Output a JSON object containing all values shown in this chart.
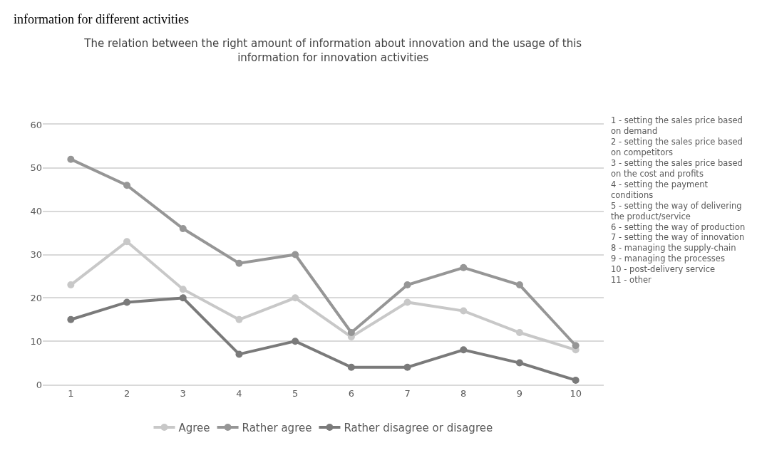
{
  "chart_data": {
    "type": "line",
    "title": "The relation between the right amount of information about innovation and the usage of this information for innovation activities",
    "categories": [
      "1",
      "2",
      "3",
      "4",
      "5",
      "6",
      "7",
      "8",
      "9",
      "10"
    ],
    "series": [
      {
        "name": "Agree",
        "color": "#c8c8c8",
        "values": [
          23,
          33,
          22,
          15,
          20,
          11,
          19,
          17,
          12,
          8
        ]
      },
      {
        "name": "Rather agree",
        "color": "#969696",
        "values": [
          52,
          46,
          36,
          28,
          30,
          12,
          23,
          27,
          23,
          9
        ]
      },
      {
        "name": "Rather disagree or disagree",
        "color": "#7a7a7a",
        "values": [
          15,
          19,
          20,
          7,
          10,
          4,
          4,
          8,
          5,
          1
        ]
      }
    ],
    "ylim": [
      0,
      60
    ],
    "yticks": [
      0,
      10,
      20,
      30,
      40,
      50,
      60
    ],
    "grid": "y",
    "legend": "bottom",
    "marker": "circle",
    "line_style": "solid",
    "annotations": [
      "information for different activities",
      "1 - setting the sales price based on demand",
      "2 - setting the sales price based on competitors",
      "3 - setting the sales price based on the cost and profits",
      "4 - setting the payment conditions",
      "5 - setting the way of delivering the product/service",
      "6 - setting the way of production",
      "7 - setting the way of innovation",
      "8 - managing the supply-chain",
      "9 - managing the processes",
      "10 - post-delivery service",
      "11 - other"
    ]
  }
}
